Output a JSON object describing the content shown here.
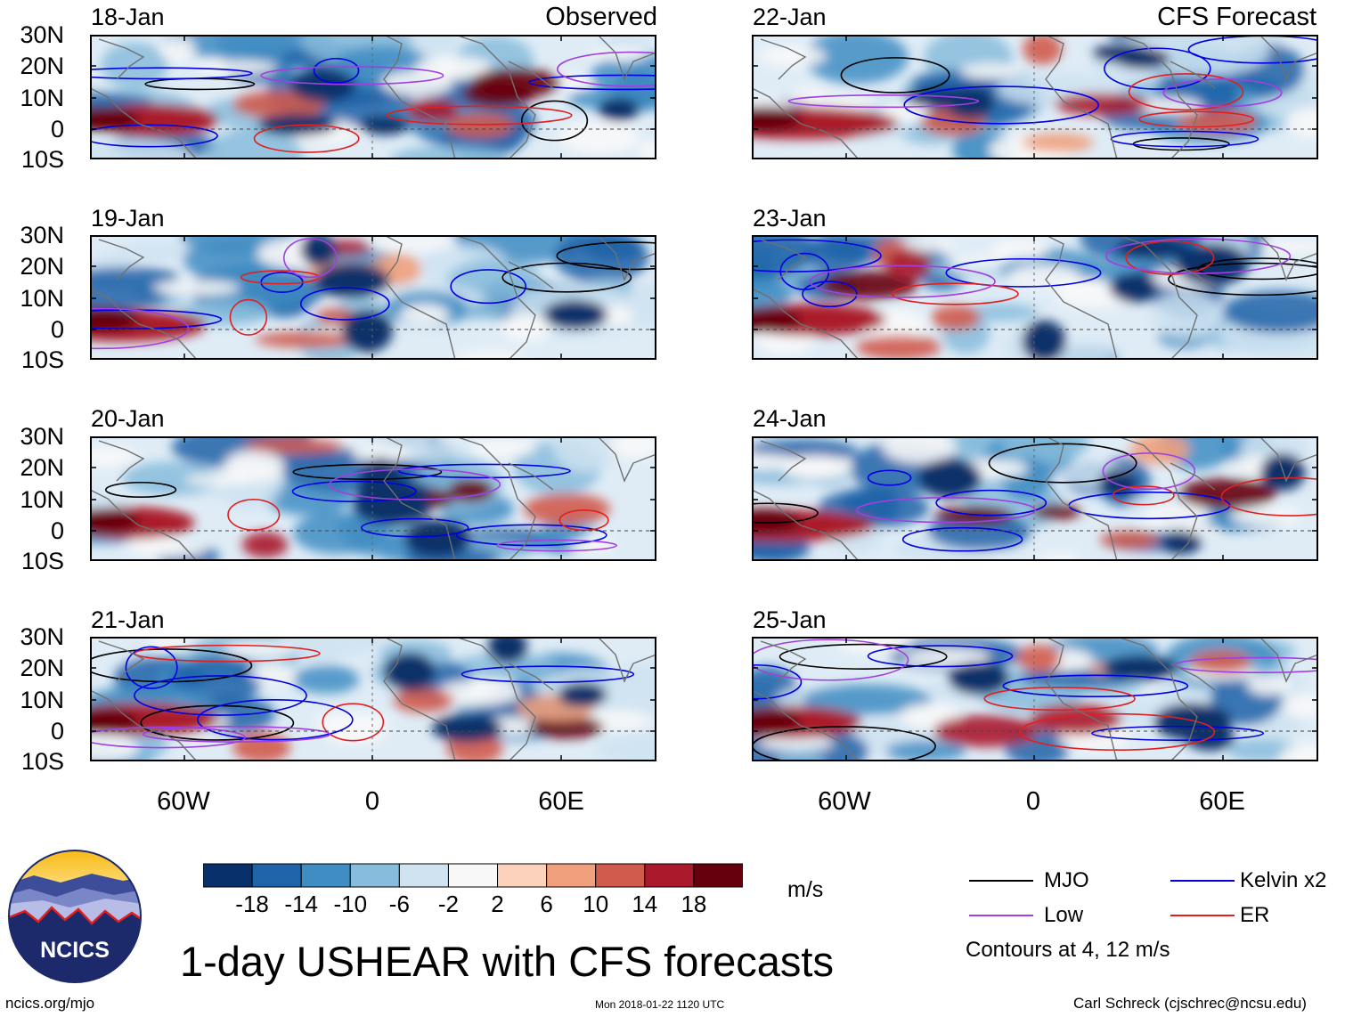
{
  "left_column": {
    "title": "Observed",
    "panels": [
      {
        "date": "18-Jan"
      },
      {
        "date": "19-Jan"
      },
      {
        "date": "20-Jan"
      },
      {
        "date": "21-Jan"
      }
    ]
  },
  "right_column": {
    "title": "CFS Forecast",
    "panels": [
      {
        "date": "22-Jan"
      },
      {
        "date": "23-Jan"
      },
      {
        "date": "24-Jan"
      },
      {
        "date": "25-Jan"
      }
    ]
  },
  "lat_labels": [
    "30N",
    "20N",
    "10N",
    "0",
    "10S"
  ],
  "lon_labels": [
    "60W",
    "0",
    "60E"
  ],
  "colorbar": {
    "labels": [
      "-18",
      "-14",
      "-10",
      "-6",
      "-2",
      "2",
      "6",
      "10",
      "14",
      "18"
    ],
    "colors": [
      "#08306b",
      "#1f63a8",
      "#3f8dc3",
      "#87bcdc",
      "#cfe3f1",
      "#f8f8f8",
      "#fcd2bc",
      "#f0a07c",
      "#d15b4c",
      "#aa1a2c",
      "#67000d"
    ],
    "units": "m/s"
  },
  "legend": {
    "items": [
      {
        "label": "MJO",
        "color": "#000000"
      },
      {
        "label": "Kelvin x2",
        "color": "#0000e0"
      },
      {
        "label": "Low",
        "color": "#a040e0"
      },
      {
        "label": "ER",
        "color": "#e02020"
      }
    ],
    "note": "Contours at 4, 12 m/s"
  },
  "logo": {
    "text": "NCICS"
  },
  "main_title": "1-day USHEAR with CFS forecasts",
  "footer": {
    "left": "ncics.org/mjo",
    "center": "Mon 2018-01-22 1120 UTC",
    "right": "Carl Schreck (cjschrec@ncsu.edu)"
  }
}
